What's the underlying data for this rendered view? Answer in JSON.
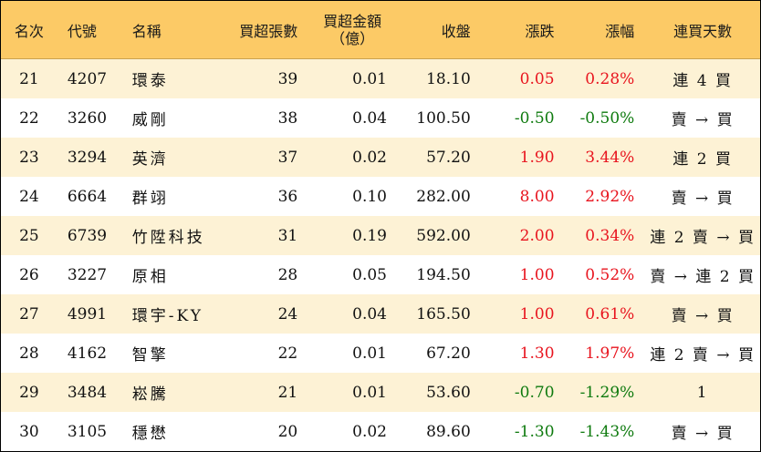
{
  "header": {
    "rank": "名次",
    "code": "代號",
    "name": "名稱",
    "lots": "買超張數",
    "amount_line1": "買超金額",
    "amount_line2": "（億）",
    "close": "收盤",
    "change": "漲跌",
    "pct": "漲幅",
    "days": "連買天數"
  },
  "colors": {
    "header_bg": "#fcca66",
    "odd_row_bg": "#fdf2d5",
    "up": "#e8141e",
    "down": "#0e7a0e"
  },
  "rows": [
    {
      "rank": "21",
      "code": "4207",
      "name": "環泰",
      "lots": "39",
      "amount": "0.01",
      "close": "18.10",
      "change": "0.05",
      "pct": "0.28%",
      "days": "連 4 買",
      "direction": "up"
    },
    {
      "rank": "22",
      "code": "3260",
      "name": "威剛",
      "lots": "38",
      "amount": "0.04",
      "close": "100.50",
      "change": "-0.50",
      "pct": "-0.50%",
      "days": "賣 → 買",
      "direction": "down"
    },
    {
      "rank": "23",
      "code": "3294",
      "name": "英濟",
      "lots": "37",
      "amount": "0.02",
      "close": "57.20",
      "change": "1.90",
      "pct": "3.44%",
      "days": "連 2 買",
      "direction": "up"
    },
    {
      "rank": "24",
      "code": "6664",
      "name": "群翊",
      "lots": "36",
      "amount": "0.10",
      "close": "282.00",
      "change": "8.00",
      "pct": "2.92%",
      "days": "賣 → 買",
      "direction": "up"
    },
    {
      "rank": "25",
      "code": "6739",
      "name": "竹陞科技",
      "lots": "31",
      "amount": "0.19",
      "close": "592.00",
      "change": "2.00",
      "pct": "0.34%",
      "days": "連 2 賣 → 買",
      "direction": "up"
    },
    {
      "rank": "26",
      "code": "3227",
      "name": "原相",
      "lots": "28",
      "amount": "0.05",
      "close": "194.50",
      "change": "1.00",
      "pct": "0.52%",
      "days": "賣 → 連 2 買",
      "direction": "up"
    },
    {
      "rank": "27",
      "code": "4991",
      "name": "環宇-KY",
      "lots": "24",
      "amount": "0.04",
      "close": "165.50",
      "change": "1.00",
      "pct": "0.61%",
      "days": "賣 → 買",
      "direction": "up"
    },
    {
      "rank": "28",
      "code": "4162",
      "name": "智擎",
      "lots": "22",
      "amount": "0.01",
      "close": "67.20",
      "change": "1.30",
      "pct": "1.97%",
      "days": "連 2 賣 → 買",
      "direction": "up"
    },
    {
      "rank": "29",
      "code": "3484",
      "name": "崧騰",
      "lots": "21",
      "amount": "0.01",
      "close": "53.60",
      "change": "-0.70",
      "pct": "-1.29%",
      "days": "1",
      "direction": "down"
    },
    {
      "rank": "30",
      "code": "3105",
      "name": "穩懋",
      "lots": "20",
      "amount": "0.02",
      "close": "89.60",
      "change": "-1.30",
      "pct": "-1.43%",
      "days": "賣 → 買",
      "direction": "down"
    }
  ]
}
